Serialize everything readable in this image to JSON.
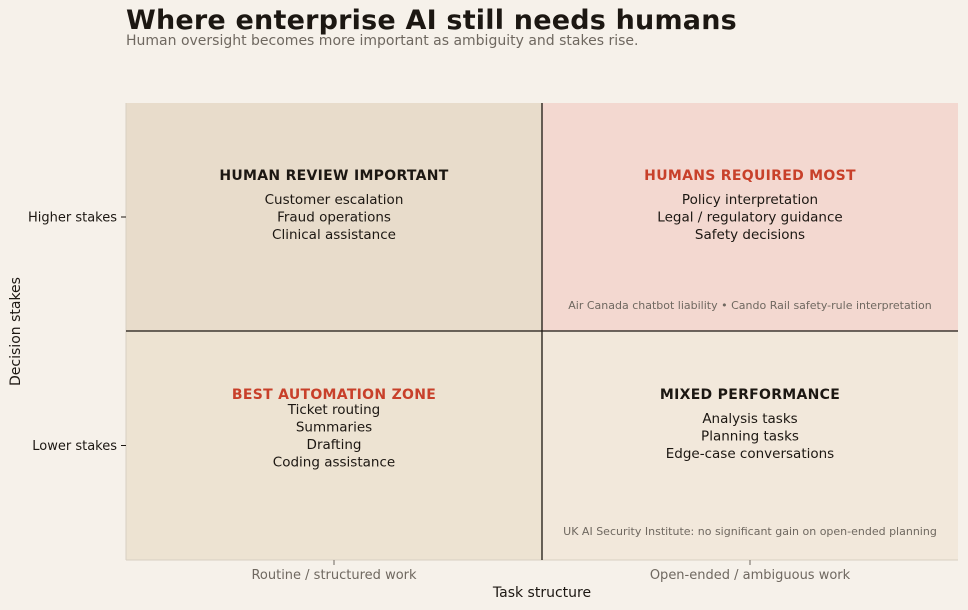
{
  "title": "Where enterprise AI still needs humans",
  "subtitle": "Human oversight becomes more important as ambiguity and stakes rise.",
  "chart_data": {
    "type": "quadrant",
    "xlabel": "Task structure",
    "ylabel": "Decision stakes",
    "x_ticks": [
      "Routine / structured work",
      "Open-ended / ambiguous work"
    ],
    "y_ticks": [
      "Lower stakes",
      "Higher stakes"
    ],
    "colors": {
      "highlight": "#c8402a",
      "text": "#1c1712",
      "muted": "#6f6860",
      "fill_top_left": "#e8dccb",
      "fill_top_right": "#f3d8d0",
      "fill_bottom_left": "#ede3d2",
      "fill_bottom_right": "#f2e8db"
    },
    "quadrants": [
      {
        "position": "top-left",
        "heading": "HUMAN REVIEW IMPORTANT",
        "highlight": false,
        "items": [
          "Customer escalation",
          "Fraud operations",
          "Clinical assistance"
        ],
        "note": ""
      },
      {
        "position": "top-right",
        "heading": "HUMANS REQUIRED MOST",
        "highlight": true,
        "items": [
          "Policy interpretation",
          "Legal / regulatory guidance",
          "Safety decisions"
        ],
        "note": "Air Canada chatbot liability • Cando Rail safety-rule interpretation"
      },
      {
        "position": "bottom-left",
        "heading": "BEST AUTOMATION ZONE",
        "highlight": true,
        "items": [
          "Ticket routing",
          "Summaries",
          "Drafting",
          "Coding assistance"
        ],
        "note": ""
      },
      {
        "position": "bottom-right",
        "heading": "MIXED PERFORMANCE",
        "highlight": false,
        "items": [
          "Analysis tasks",
          "Planning tasks",
          "Edge-case conversations"
        ],
        "note": "UK AI Security Institute: no significant gain on open-ended planning"
      }
    ]
  }
}
